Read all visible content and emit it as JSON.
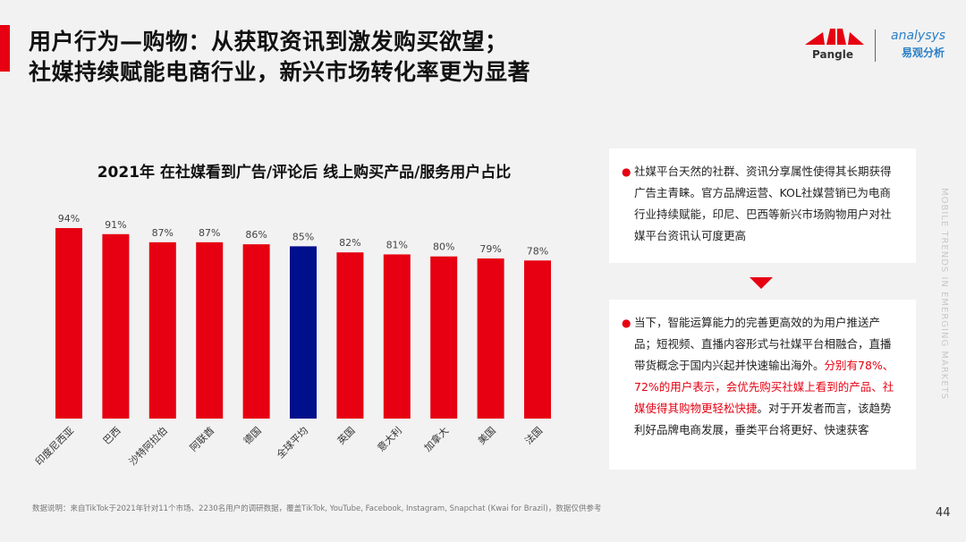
{
  "header": {
    "title_line1": "用户行为—购物：从获取资讯到激发购买欲望；",
    "title_line2": "社媒持续赋能电商行业，新兴市场转化率更为显著"
  },
  "logos": {
    "pangle": "Pangle",
    "analysys": "analysys",
    "analysys_cn": "易观分析"
  },
  "chart_data": {
    "type": "bar",
    "title": "2021年 在社媒看到广告/评论后 线上购买产品/服务用户占比",
    "categories": [
      "印度尼西亚",
      "巴西",
      "沙特阿拉伯",
      "阿联酋",
      "德国",
      "全球平均",
      "英国",
      "意大利",
      "加拿大",
      "美国",
      "法国"
    ],
    "values": [
      94,
      91,
      87,
      87,
      86,
      85,
      82,
      81,
      80,
      79,
      78
    ],
    "labels": [
      "94%",
      "91%",
      "87%",
      "87%",
      "86%",
      "85%",
      "82%",
      "81%",
      "80%",
      "79%",
      "78%"
    ],
    "ylim": [
      0,
      100
    ],
    "colors": {
      "default": "#e60012",
      "highlight": "#000f8c"
    },
    "highlight_category": "全球平均",
    "grid": false
  },
  "cards": [
    {
      "text": "社媒平台天然的社群、资讯分享属性使得其长期获得广告主青睐。官方品牌运营、KOL社媒营销已为电商行业持续赋能，印尼、巴西等新兴市场购物用户对社媒平台资讯认可度更高"
    },
    {
      "text_a": "当下，智能运算能力的完善更高效的为用户推送产品；短视频、直播内容形式与社媒平台相融合，直播带货概念于国内兴起并快速输出海外。",
      "text_red": "分别有78%、72%的用户表示，会优先购买社媒上看到的产品、社媒使得其购物更轻松快捷",
      "text_b": "。对于开发者而言，该趋势利好品牌电商发展，垂类平台将更好、快速获客"
    }
  ],
  "side_text": "MOBILE TRENDS IN EMERGING MARKETS",
  "footnote": "数据说明：来自TikTok于2021年针对11个市场、2230名用户的调研数据，覆盖TikTok, YouTube, Facebook, Instagram, Snapchat (Kwai for Brazil)，数据仅供参考",
  "page_number": "44",
  "colors": {
    "accent": "#e60012"
  }
}
